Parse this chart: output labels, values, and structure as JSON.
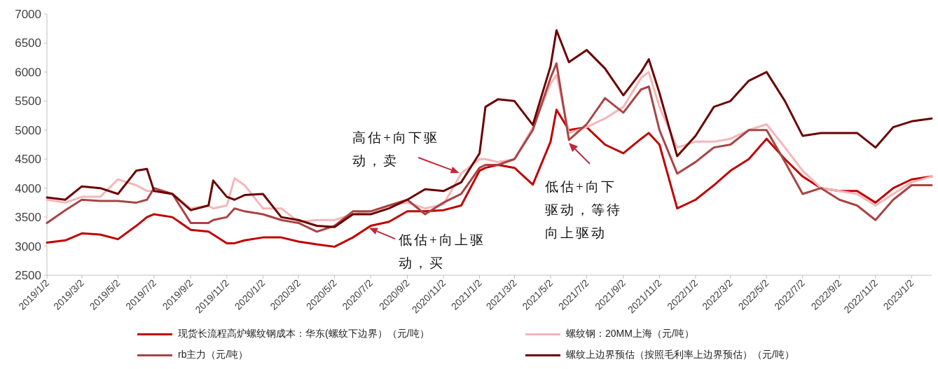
{
  "chart_data": {
    "type": "line",
    "x": [
      "2019-01-02",
      "2019-02-02",
      "2019-03-02",
      "2019-04-02",
      "2019-05-02",
      "2019-06-02",
      "2019-06-20",
      "2019-07-02",
      "2019-08-02",
      "2019-09-02",
      "2019-10-02",
      "2019-10-10",
      "2019-11-02",
      "2019-11-15",
      "2019-12-02",
      "2020-01-02",
      "2020-02-02",
      "2020-03-02",
      "2020-04-02",
      "2020-05-02",
      "2020-06-02",
      "2020-07-02",
      "2020-08-02",
      "2020-09-02",
      "2020-10-02",
      "2020-11-02",
      "2020-12-02",
      "2021-01-02",
      "2021-01-12",
      "2021-02-02",
      "2021-03-02",
      "2021-04-02",
      "2021-05-02",
      "2021-05-12",
      "2021-06-02",
      "2021-07-02",
      "2021-08-02",
      "2021-09-02",
      "2021-10-02",
      "2021-10-15",
      "2021-11-02",
      "2021-12-02",
      "2022-01-02",
      "2022-02-02",
      "2022-03-02",
      "2022-04-02",
      "2022-05-02",
      "2022-06-02",
      "2022-07-02",
      "2022-08-02",
      "2022-09-02",
      "2022-10-02",
      "2022-11-02",
      "2022-12-02",
      "2023-01-02",
      "2023-02-05"
    ],
    "series": [
      {
        "name": "现货长流程高炉螺纹钢成本：华东(螺纹下边界）（元/吨）",
        "color": "#c00000",
        "values": [
          3060,
          3100,
          3220,
          3200,
          3120,
          3350,
          3500,
          3550,
          3500,
          3280,
          3250,
          3200,
          3050,
          3050,
          3100,
          3150,
          3150,
          3080,
          3030,
          2990,
          3150,
          3350,
          3420,
          3600,
          3600,
          3620,
          3700,
          4300,
          4350,
          4400,
          4350,
          4060,
          4800,
          5350,
          5000,
          5050,
          4750,
          4600,
          4850,
          4950,
          4750,
          3650,
          3800,
          4050,
          4300,
          4500,
          4850,
          4500,
          4200,
          4000,
          3950,
          3950,
          3750,
          4000,
          4150,
          4200
        ]
      },
      {
        "name": "螺纹钢：20MM上海（元/吨）",
        "color": "#f4b6b8",
        "values": [
          3800,
          3750,
          3850,
          3850,
          4150,
          4050,
          3950,
          3950,
          3900,
          3650,
          3700,
          3650,
          3700,
          4170,
          4050,
          3650,
          3650,
          3420,
          3450,
          3450,
          3550,
          3600,
          3700,
          3750,
          3650,
          3720,
          4250,
          4500,
          4500,
          4450,
          4500,
          5050,
          5800,
          5950,
          4950,
          5050,
          5200,
          5400,
          5900,
          6000,
          5400,
          4700,
          4800,
          4800,
          4850,
          5000,
          5100,
          4700,
          4300,
          4000,
          3950,
          3900,
          3700,
          3900,
          4100,
          4200
        ]
      },
      {
        "name": "rb主力（元/吨）",
        "color": "#a84444",
        "values": [
          3400,
          3620,
          3800,
          3780,
          3780,
          3750,
          3800,
          4000,
          3900,
          3400,
          3400,
          3450,
          3500,
          3650,
          3600,
          3550,
          3450,
          3400,
          3250,
          3350,
          3600,
          3600,
          3700,
          3800,
          3550,
          3750,
          3900,
          4350,
          4400,
          4400,
          4500,
          5000,
          5900,
          6150,
          4830,
          5100,
          5550,
          5300,
          5700,
          5750,
          5000,
          4250,
          4450,
          4700,
          4750,
          5000,
          5000,
          4450,
          3900,
          4000,
          3800,
          3700,
          3450,
          3800,
          4050,
          4050
        ]
      },
      {
        "name": "螺纹上边界预估（按照毛利率上边界预估）（元/吨）",
        "color": "#6b0000",
        "values": [
          3840,
          3800,
          4030,
          4000,
          3900,
          4300,
          4330,
          3950,
          3900,
          3620,
          3700,
          4130,
          3850,
          3800,
          3880,
          3900,
          3500,
          3450,
          3350,
          3330,
          3550,
          3550,
          3650,
          3800,
          3980,
          3950,
          4100,
          4600,
          5400,
          5530,
          5500,
          5090,
          6100,
          6720,
          6170,
          6380,
          6060,
          5600,
          6000,
          6220,
          5640,
          4550,
          4900,
          5400,
          5500,
          5850,
          6000,
          5500,
          4900,
          4950,
          4950,
          4950,
          4700,
          5050,
          5150,
          5200
        ]
      }
    ],
    "xlim": [
      "2019-01-02",
      "2023-02-05"
    ],
    "xticks": [
      {
        "value": "2019-01-02",
        "label": "2019/1/2"
      },
      {
        "value": "2019-03-02",
        "label": "2019/3/2"
      },
      {
        "value": "2019-05-02",
        "label": "2019/5/2"
      },
      {
        "value": "2019-07-02",
        "label": "2019/7/2"
      },
      {
        "value": "2019-09-02",
        "label": "2019/9/2"
      },
      {
        "value": "2019-11-02",
        "label": "2019/11/2"
      },
      {
        "value": "2020-01-02",
        "label": "2020/1/2"
      },
      {
        "value": "2020-03-02",
        "label": "2020/3/2"
      },
      {
        "value": "2020-05-02",
        "label": "2020/5/2"
      },
      {
        "value": "2020-07-02",
        "label": "2020/7/2"
      },
      {
        "value": "2020-09-02",
        "label": "2020/9/2"
      },
      {
        "value": "2020-11-02",
        "label": "2020/11/2"
      },
      {
        "value": "2021-01-02",
        "label": "2021/1/2"
      },
      {
        "value": "2021-03-02",
        "label": "2021/3/2"
      },
      {
        "value": "2021-05-02",
        "label": "2021/5/2"
      },
      {
        "value": "2021-07-02",
        "label": "2021/7/2"
      },
      {
        "value": "2021-09-02",
        "label": "2021/9/2"
      },
      {
        "value": "2021-11-02",
        "label": "2021/11/2"
      },
      {
        "value": "2022-01-02",
        "label": "2022/1/2"
      },
      {
        "value": "2022-03-02",
        "label": "2022/3/2"
      },
      {
        "value": "2022-05-02",
        "label": "2022/5/2"
      },
      {
        "value": "2022-07-02",
        "label": "2022/7/2"
      },
      {
        "value": "2022-09-02",
        "label": "2022/9/2"
      },
      {
        "value": "2022-11-02",
        "label": "2022/11/2"
      },
      {
        "value": "2023-01-02",
        "label": "2023/1/2"
      }
    ],
    "ylim": [
      2500,
      7000
    ],
    "yticks": [
      2500,
      3000,
      3500,
      4000,
      4500,
      5000,
      5500,
      6000,
      6500,
      7000
    ],
    "grid": false,
    "legend": "bottom",
    "marker": "none",
    "line_style": "solid",
    "annotations": [
      {
        "text": "高估+向下驱动，卖",
        "x": "2020-12-02",
        "y": 4250
      },
      {
        "text": "低估+向上驱动，买",
        "x": "2020-06-26",
        "y": 3330
      },
      "低估+向下驱动，等待向上驱动"
    ]
  }
}
